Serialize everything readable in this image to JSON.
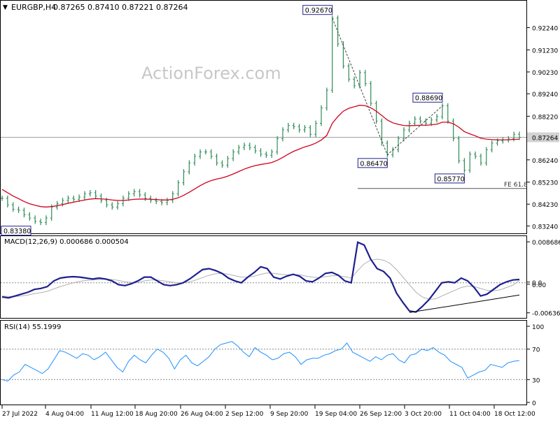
{
  "header": {
    "symbol": "EURGBP,H4",
    "ohlc": "0.87265 0.87410 0.87221 0.87264"
  },
  "watermark": "ActionForex.com",
  "colors": {
    "price": "#2e8b57",
    "ma": "#d0021b",
    "macd": "#1f1f8f",
    "macd_signal": "#b0b0b0",
    "rsi": "#1e90ff",
    "label_border": "#1f1f8f",
    "current_bg": "#d3d3d3"
  },
  "chart_data": [
    {
      "type": "line",
      "panel": "price",
      "y_ticks": [
        "0.92240",
        "0.91230",
        "0.90230",
        "0.89240",
        "0.88220",
        "0.87264",
        "0.86240",
        "0.85230",
        "0.84230",
        "0.83240"
      ],
      "current_price": "0.87264",
      "ylim": [
        0.83,
        0.9286
      ],
      "x_ticks": [
        "27 Jul 2022",
        "4 Aug 04:00",
        "11 Aug 12:00",
        "18 Aug 20:00",
        "26 Aug 04:00",
        "2 Sep 12:00",
        "9 Sep 20:00",
        "19 Sep 04:00",
        "26 Sep 12:00",
        "3 Oct 20:00",
        "11 Oct 04:00",
        "18 Oct 12:00"
      ],
      "series": [
        {
          "values": [
            0.845,
            0.842,
            0.84,
            0.8395,
            0.8375,
            0.836,
            0.8345,
            0.834,
            0.836,
            0.841,
            0.8425,
            0.844,
            0.845,
            0.8445,
            0.8455,
            0.847,
            0.8475,
            0.846,
            0.844,
            0.842,
            0.841,
            0.8425,
            0.845,
            0.847,
            0.848,
            0.8465,
            0.845,
            0.844,
            0.8435,
            0.843,
            0.844,
            0.847,
            0.852,
            0.857,
            0.861,
            0.864,
            0.866,
            0.866,
            0.864,
            0.861,
            0.86,
            0.863,
            0.866,
            0.868,
            0.869,
            0.868,
            0.8665,
            0.865,
            0.8645,
            0.866,
            0.872,
            0.876,
            0.878,
            0.8775,
            0.876,
            0.877,
            0.874,
            0.879,
            0.886,
            0.894,
            0.9267,
            0.915,
            0.905,
            0.899,
            0.896,
            0.902,
            0.897,
            0.888,
            0.88,
            0.87,
            0.8647,
            0.867,
            0.872,
            0.876,
            0.879,
            0.881,
            0.88,
            0.879,
            0.8805,
            0.882,
            0.8869,
            0.88,
            0.872,
            0.862,
            0.8577,
            0.865,
            0.864,
            0.861,
            0.867,
            0.87,
            0.871,
            0.8715,
            0.872,
            0.874,
            0.8726
          ]
        },
        {
          "name": "",
          "values": [
            0.849,
            0.8475,
            0.846,
            0.8448,
            0.8435,
            0.8425,
            0.8418,
            0.8412,
            0.841,
            0.8412,
            0.8416,
            0.8421,
            0.8427,
            0.8432,
            0.8437,
            0.8442,
            0.8446,
            0.8448,
            0.8447,
            0.8445,
            0.8442,
            0.844,
            0.844,
            0.8442,
            0.8445,
            0.8446,
            0.8446,
            0.8445,
            0.8444,
            0.8442,
            0.8442,
            0.8445,
            0.8452,
            0.8463,
            0.8477,
            0.8492,
            0.8507,
            0.852,
            0.853,
            0.8537,
            0.8542,
            0.855,
            0.856,
            0.8571,
            0.8582,
            0.8591,
            0.8598,
            0.8603,
            0.8607,
            0.8612,
            0.8622,
            0.8635,
            0.865,
            0.8663,
            0.8673,
            0.8683,
            0.869,
            0.87,
            0.8714,
            0.8735,
            0.879,
            0.882,
            0.8845,
            0.8858,
            0.8865,
            0.8872,
            0.887,
            0.886,
            0.8845,
            0.8825,
            0.8805,
            0.8792,
            0.8785,
            0.878,
            0.8779,
            0.878,
            0.8781,
            0.8781,
            0.8783,
            0.8786,
            0.8795,
            0.8795,
            0.8788,
            0.8772,
            0.8752,
            0.8742,
            0.8733,
            0.8722,
            0.8718,
            0.8716,
            0.8715,
            0.8715,
            0.8715,
            0.8717,
            0.8718
          ]
        }
      ],
      "annotations": [
        "0.92670",
        "0.88690",
        "0.86470",
        "0.85770",
        "0.83380",
        "FE 61.8"
      ],
      "fe_level": 0.8494
    },
    {
      "type": "line",
      "panel": "macd",
      "title": "MACD(12,26,9) 0.000686 0.000504",
      "y_ticks": [
        "0.008686",
        "0.0",
        "0.00",
        "-0.006366"
      ],
      "ylim": [
        -0.007,
        0.009
      ],
      "series": [
        {
          "values": [
            -0.003,
            -0.0032,
            -0.0028,
            -0.0024,
            -0.002,
            -0.0014,
            -0.0012,
            -0.0008,
            0.0004,
            0.001,
            0.0012,
            0.0013,
            0.0012,
            0.001,
            0.0008,
            0.001,
            0.0008,
            0.0004,
            -0.0004,
            -0.0006,
            -0.0002,
            0.0004,
            0.0012,
            0.0012,
            0.0004,
            -0.0004,
            -0.0006,
            -0.0004,
            0.0,
            0.0008,
            0.0018,
            0.0028,
            0.003,
            0.0026,
            0.002,
            0.001,
            0.0004,
            0.0,
            0.0012,
            0.0022,
            0.0034,
            0.003,
            0.0012,
            0.0008,
            0.0014,
            0.0018,
            0.0014,
            0.0004,
            0.0002,
            0.001,
            0.002,
            0.0022,
            0.0016,
            0.0004,
            0.0,
            0.0086,
            0.008,
            0.005,
            0.003,
            0.0024,
            0.001,
            -0.0022,
            -0.0042,
            -0.006,
            -0.0062,
            -0.005,
            -0.0036,
            -0.0018,
            0.0,
            0.0002,
            0.0,
            0.001,
            0.0004,
            -0.001,
            -0.0028,
            -0.0024,
            -0.0014,
            -0.0004,
            0.0002,
            0.0006,
            0.0007
          ]
        },
        {
          "name": "",
          "values": [
            -0.0028,
            -0.0029,
            -0.0029,
            -0.0028,
            -0.0026,
            -0.0023,
            -0.0021,
            -0.0018,
            -0.0013,
            -0.0008,
            -0.0004,
            0.0,
            0.0003,
            0.0005,
            0.0006,
            0.0007,
            0.0008,
            0.0007,
            0.0005,
            0.0002,
            0.0001,
            0.0001,
            0.0004,
            0.0006,
            0.0006,
            0.0004,
            0.0002,
            0.0,
            0.0,
            0.0002,
            0.0006,
            0.0011,
            0.0016,
            0.0019,
            0.002,
            0.0018,
            0.0015,
            0.0012,
            0.0012,
            0.0014,
            0.0018,
            0.0021,
            0.002,
            0.0018,
            0.0017,
            0.0017,
            0.0017,
            0.0014,
            0.0012,
            0.0011,
            0.0013,
            0.0015,
            0.0015,
            0.0013,
            0.001,
            0.0026,
            0.004,
            0.0048,
            0.005,
            0.0048,
            0.0041,
            0.0028,
            0.0012,
            -0.0004,
            -0.002,
            -0.003,
            -0.0035,
            -0.0034,
            -0.0028,
            -0.0022,
            -0.0016,
            -0.001,
            -0.0007,
            -0.0008,
            -0.0012,
            -0.0016,
            -0.0017,
            -0.0015,
            -0.001,
            -0.0005,
            0.0005
          ]
        }
      ]
    },
    {
      "type": "line",
      "panel": "rsi",
      "title": "RSI(14) 55.1999",
      "y_ticks": [
        "100",
        "70",
        "30",
        "0"
      ],
      "ylim": [
        0,
        100
      ],
      "levels": [
        70,
        30
      ],
      "series": [
        {
          "values": [
            30,
            28,
            36,
            40,
            50,
            46,
            42,
            38,
            44,
            56,
            68,
            66,
            62,
            58,
            64,
            62,
            56,
            60,
            66,
            56,
            46,
            40,
            54,
            62,
            56,
            52,
            62,
            70,
            66,
            58,
            44,
            56,
            62,
            52,
            48,
            54,
            60,
            70,
            76,
            78,
            80,
            74,
            66,
            60,
            72,
            66,
            62,
            56,
            58,
            64,
            66,
            60,
            50,
            56,
            58,
            58,
            62,
            64,
            68,
            70,
            78,
            66,
            62,
            58,
            54,
            60,
            56,
            62,
            64,
            56,
            52,
            62,
            64,
            70,
            68,
            72,
            66,
            62,
            54,
            50,
            46,
            32,
            36,
            40,
            42,
            50,
            48,
            46,
            52,
            54,
            55
          ]
        }
      ]
    }
  ]
}
